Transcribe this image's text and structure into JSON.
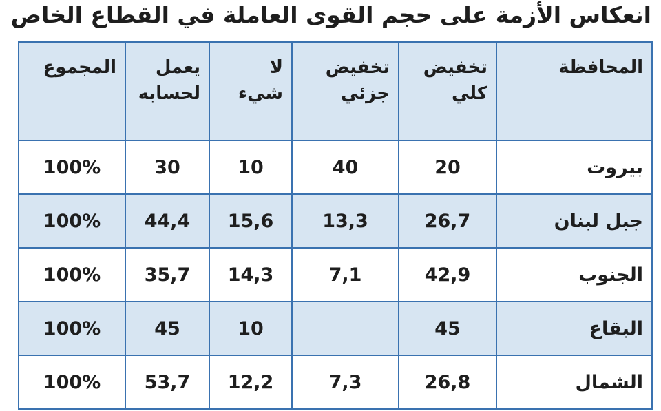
{
  "title": "انعكاس الأزمة على حجم القوى العاملة في القطاع الخاص",
  "table": {
    "header": [
      "المحافظة",
      "تخفيض\nكلي",
      "تخفيض\nجزئي",
      "لا\nشيء",
      "يعمل\nلحسابه",
      "المجموع"
    ],
    "rows": [
      [
        "بيروت",
        "20",
        "40",
        "10",
        "30",
        "100%"
      ],
      [
        "جبل لبنان",
        "26,7",
        "13,3",
        "15,6",
        "44,4",
        "100%"
      ],
      [
        "الجنوب",
        "42,9",
        "7,1",
        "14,3",
        "35,7",
        "100%"
      ],
      [
        "البقاع",
        "45",
        null,
        "10",
        "45",
        "100%"
      ],
      [
        "الشمال",
        "26,8",
        "7,3",
        "12,2",
        "53,7",
        "100%"
      ]
    ]
  }
}
